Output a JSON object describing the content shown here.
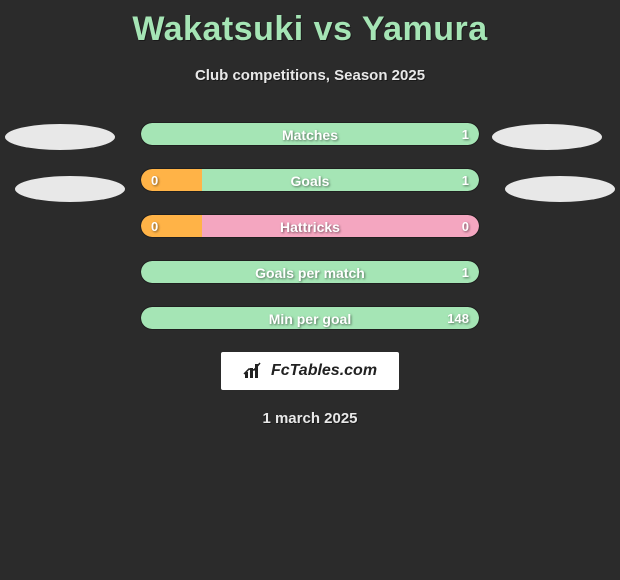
{
  "title": "Wakatsuki vs Yamura",
  "subtitle": "Club competitions, Season 2025",
  "date": "1 march 2025",
  "badge_text": "FcTables.com",
  "colors": {
    "background": "#2b2b2b",
    "title": "#a5e5b5",
    "ellipse": "#e8e8e8",
    "bar_green": "#a5e5b5",
    "bar_orange": "#ffb347",
    "bar_pink": "#f4a6c0",
    "text_white": "#ffffff"
  },
  "bars": [
    {
      "label": "Matches",
      "left_value": "",
      "right_value": "1",
      "segments": [
        {
          "color": "#a5e5b5",
          "percent": 100,
          "shape": "full"
        }
      ]
    },
    {
      "label": "Goals",
      "left_value": "0",
      "right_value": "1",
      "segments": [
        {
          "color": "#ffb347",
          "percent": 18,
          "shape": "left"
        },
        {
          "color": "#a5e5b5",
          "percent": 82,
          "shape": "right"
        }
      ]
    },
    {
      "label": "Hattricks",
      "left_value": "0",
      "right_value": "0",
      "segments": [
        {
          "color": "#ffb347",
          "percent": 18,
          "shape": "left"
        },
        {
          "color": "#f4a6c0",
          "percent": 82,
          "shape": "right"
        }
      ]
    },
    {
      "label": "Goals per match",
      "left_value": "",
      "right_value": "1",
      "segments": [
        {
          "color": "#a5e5b5",
          "percent": 100,
          "shape": "full"
        }
      ]
    },
    {
      "label": "Min per goal",
      "left_value": "",
      "right_value": "148",
      "segments": [
        {
          "color": "#a5e5b5",
          "percent": 100,
          "shape": "full"
        }
      ]
    }
  ]
}
